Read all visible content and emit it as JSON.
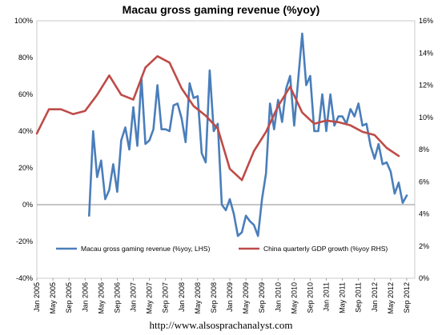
{
  "chart_data": {
    "type": "line",
    "title": "Macau gross gaming revenue (%yoy)",
    "source": "http://www.alsosprachanalyst.com",
    "y_left": {
      "min": -40,
      "max": 100,
      "step": 20,
      "format": "percent",
      "ticks": [
        "-40%",
        "-20%",
        "0%",
        "20%",
        "40%",
        "60%",
        "80%",
        "100%"
      ]
    },
    "y_right": {
      "min": 0,
      "max": 16,
      "step": 2,
      "format": "percent",
      "ticks": [
        "0%",
        "2%",
        "4%",
        "6%",
        "8%",
        "10%",
        "12%",
        "14%",
        "16%"
      ]
    },
    "x": {
      "start": "2005-01",
      "end": "2012-11",
      "ticks": [
        "Jan 2005",
        "May 2005",
        "Sep 2005",
        "Jan 2006",
        "May 2006",
        "Sep 2006",
        "Jan 2007",
        "May 2007",
        "Sep 2007",
        "Jan 2008",
        "May 2008",
        "Sep 2008",
        "Jan 2009",
        "May 2009",
        "Sep 2009",
        "Jan 2010",
        "May 2010",
        "Sep 2010",
        "Jan 2011",
        "May 2011",
        "Sep 2011",
        "Jan 2012",
        "May 2012",
        "Sep 2012"
      ]
    },
    "legend": {
      "placement": "bottom"
    },
    "series": [
      {
        "name": "Macau gross gaming revenue (%yoy, LHS)",
        "axis": "left",
        "color": "#4a7ebb",
        "data": [
          [
            "2006-02",
            -6
          ],
          [
            "2006-03",
            40
          ],
          [
            "2006-04",
            15
          ],
          [
            "2006-05",
            24
          ],
          [
            "2006-06",
            3
          ],
          [
            "2006-07",
            8
          ],
          [
            "2006-08",
            22
          ],
          [
            "2006-09",
            7
          ],
          [
            "2006-10",
            35
          ],
          [
            "2006-11",
            42
          ],
          [
            "2006-12",
            30
          ],
          [
            "2007-01",
            53
          ],
          [
            "2007-02",
            32
          ],
          [
            "2007-03",
            69
          ],
          [
            "2007-04",
            33
          ],
          [
            "2007-05",
            35
          ],
          [
            "2007-06",
            41
          ],
          [
            "2007-07",
            65
          ],
          [
            "2007-08",
            41
          ],
          [
            "2007-09",
            41
          ],
          [
            "2007-10",
            40
          ],
          [
            "2007-11",
            54
          ],
          [
            "2007-12",
            55
          ],
          [
            "2008-01",
            47
          ],
          [
            "2008-02",
            34
          ],
          [
            "2008-03",
            66
          ],
          [
            "2008-04",
            58
          ],
          [
            "2008-05",
            59
          ],
          [
            "2008-06",
            28
          ],
          [
            "2008-07",
            23
          ],
          [
            "2008-08",
            73
          ],
          [
            "2008-09",
            40
          ],
          [
            "2008-10",
            44
          ],
          [
            "2008-11",
            0
          ],
          [
            "2008-12",
            -3
          ],
          [
            "2009-01",
            3
          ],
          [
            "2009-02",
            -5
          ],
          [
            "2009-03",
            -17
          ],
          [
            "2009-04",
            -15
          ],
          [
            "2009-05",
            -6
          ],
          [
            "2009-06",
            -9
          ],
          [
            "2009-07",
            -11
          ],
          [
            "2009-08",
            -17
          ],
          [
            "2009-09",
            3
          ],
          [
            "2009-10",
            17
          ],
          [
            "2009-11",
            55
          ],
          [
            "2009-12",
            41
          ],
          [
            "2010-01",
            57
          ],
          [
            "2010-02",
            45
          ],
          [
            "2010-03",
            63
          ],
          [
            "2010-04",
            70
          ],
          [
            "2010-05",
            43
          ],
          [
            "2010-06",
            68
          ],
          [
            "2010-07",
            93
          ],
          [
            "2010-08",
            65
          ],
          [
            "2010-09",
            70
          ],
          [
            "2010-10",
            40
          ],
          [
            "2010-11",
            40
          ],
          [
            "2010-12",
            60
          ],
          [
            "2011-01",
            40
          ],
          [
            "2011-02",
            60
          ],
          [
            "2011-03",
            43
          ],
          [
            "2011-04",
            48
          ],
          [
            "2011-05",
            48
          ],
          [
            "2011-06",
            44
          ],
          [
            "2011-07",
            52
          ],
          [
            "2011-08",
            48
          ],
          [
            "2011-09",
            55
          ],
          [
            "2011-10",
            43
          ],
          [
            "2011-11",
            44
          ],
          [
            "2011-12",
            32
          ],
          [
            "2012-01",
            25
          ],
          [
            "2012-02",
            33
          ],
          [
            "2012-03",
            22
          ],
          [
            "2012-04",
            23
          ],
          [
            "2012-05",
            18
          ],
          [
            "2012-06",
            6
          ],
          [
            "2012-07",
            12
          ],
          [
            "2012-08",
            1
          ],
          [
            "2012-09",
            5
          ]
        ]
      },
      {
        "name": "China quarterly GDP growth (%yoy RHS)",
        "axis": "right",
        "color": "#be4b48",
        "data": [
          [
            "2005-01",
            9.0
          ],
          [
            "2005-04",
            10.5
          ],
          [
            "2005-07",
            10.5
          ],
          [
            "2005-10",
            10.2
          ],
          [
            "2006-01",
            10.4
          ],
          [
            "2006-04",
            11.4
          ],
          [
            "2006-07",
            12.6
          ],
          [
            "2006-10",
            11.4
          ],
          [
            "2007-01",
            11.1
          ],
          [
            "2007-04",
            13.1
          ],
          [
            "2007-07",
            13.8
          ],
          [
            "2007-10",
            13.4
          ],
          [
            "2008-01",
            11.8
          ],
          [
            "2008-04",
            10.7
          ],
          [
            "2008-07",
            10.1
          ],
          [
            "2008-10",
            9.3
          ],
          [
            "2009-01",
            6.8
          ],
          [
            "2009-04",
            6.1
          ],
          [
            "2009-07",
            7.9
          ],
          [
            "2009-10",
            9.1
          ],
          [
            "2010-01",
            10.7
          ],
          [
            "2010-04",
            11.9
          ],
          [
            "2010-07",
            10.3
          ],
          [
            "2010-10",
            9.6
          ],
          [
            "2011-01",
            9.8
          ],
          [
            "2011-04",
            9.7
          ],
          [
            "2011-07",
            9.5
          ],
          [
            "2011-10",
            9.1
          ],
          [
            "2012-01",
            8.9
          ],
          [
            "2012-04",
            8.1
          ],
          [
            "2012-07",
            7.6
          ]
        ]
      }
    ]
  }
}
